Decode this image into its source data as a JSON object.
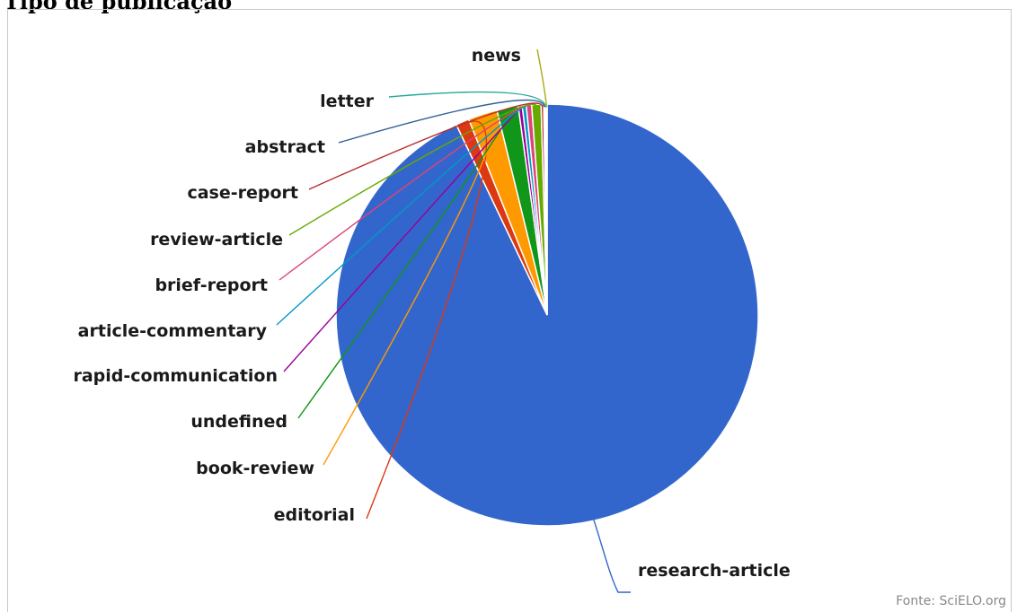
{
  "page": {
    "title": "Tipo de publicação"
  },
  "credit": "Fonte: SciELO.org",
  "colors": {
    "research-article": "#3366cc",
    "editorial": "#dc3912",
    "book-review": "#ff9900",
    "undefined": "#109618",
    "rapid-communication": "#990099",
    "article-commentary": "#0099c6",
    "brief-report": "#dd4477",
    "review-article": "#66aa00",
    "case-report": "#b82e2e",
    "abstract": "#316395",
    "letter": "#22aa99",
    "news": "#aaaa11"
  },
  "chart_data": {
    "type": "pie",
    "start_angle_deg": 0,
    "direction": "clockwise",
    "title": "",
    "legend": "none",
    "slices": [
      {
        "label": "research-article",
        "value": 91.2
      },
      {
        "label": "editorial",
        "value": 1.0
      },
      {
        "label": "book-review",
        "value": 2.2
      },
      {
        "label": "undefined",
        "value": 1.6
      },
      {
        "label": "rapid-communication",
        "value": 0.3
      },
      {
        "label": "article-commentary",
        "value": 0.3
      },
      {
        "label": "brief-report",
        "value": 0.4
      },
      {
        "label": "review-article",
        "value": 0.7
      },
      {
        "label": "case-report",
        "value": 0.2
      },
      {
        "label": "abstract",
        "value": 0.1
      },
      {
        "label": "letter",
        "value": 0.1
      },
      {
        "label": "news",
        "value": 0.05
      }
    ]
  }
}
